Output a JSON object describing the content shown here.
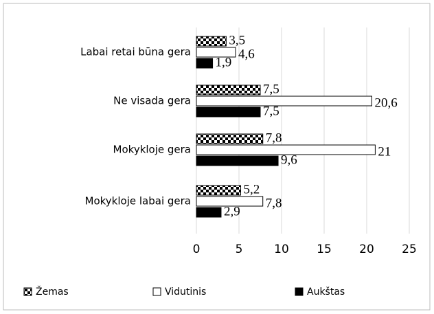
{
  "chart_data": {
    "type": "barh",
    "categories": [
      "Labai retai būna gera",
      "Ne visada gera",
      "Mokykloje gera",
      "Mokykloje labai gera"
    ],
    "series": [
      {
        "name": "Žemas",
        "color": "#000000",
        "pattern": "checker",
        "values": [
          3.5,
          7.5,
          7.8,
          5.2
        ],
        "value_labels": [
          "3,5",
          "7,5",
          "7,8",
          "5,2"
        ]
      },
      {
        "name": "Vidutinis",
        "color": "#ffffff",
        "values": [
          4.6,
          20.6,
          21,
          7.8
        ],
        "value_labels": [
          "4,6",
          "20,6",
          "21",
          "7,8"
        ]
      },
      {
        "name": "Aukštas",
        "color": "#000000",
        "values": [
          1.9,
          7.5,
          9.6,
          2.9
        ],
        "value_labels": [
          "1,9",
          "7,5",
          "9,6",
          "2,9"
        ]
      }
    ],
    "xlim": [
      0,
      25
    ],
    "xticks": [
      0,
      5,
      10,
      15,
      20,
      25
    ],
    "grid": true,
    "legend": "bottom"
  }
}
